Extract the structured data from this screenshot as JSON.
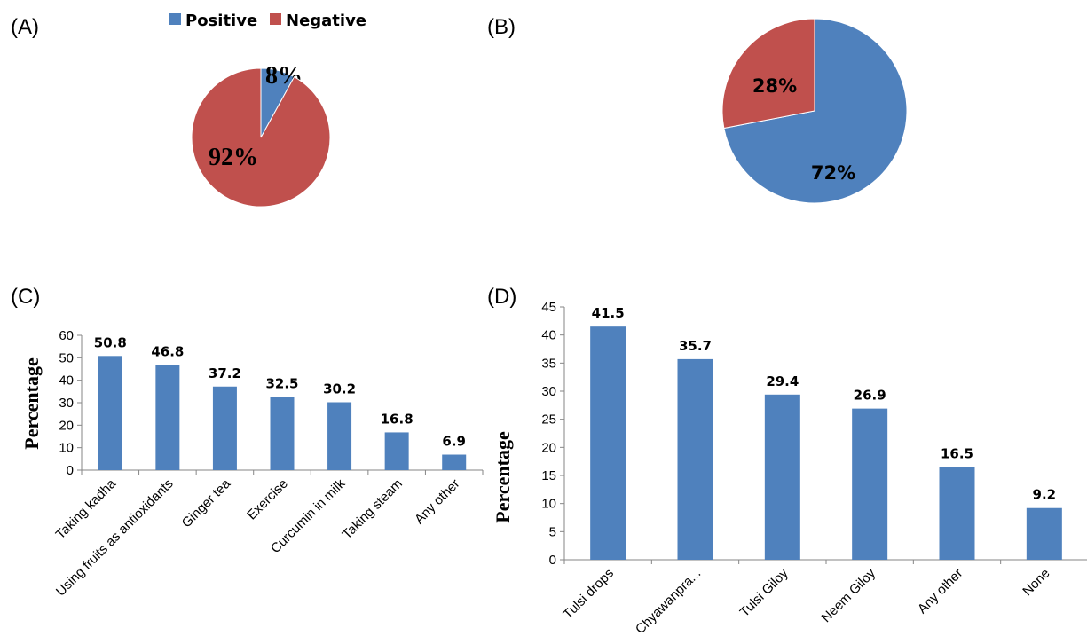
{
  "colors": {
    "positive": "#4F81BD",
    "negative": "#C0504D",
    "axis": "#868686"
  },
  "chart_data": [
    {
      "panel": "(A)",
      "type": "pie",
      "legend": [
        "Positive",
        "Negative"
      ],
      "legend_position": "top",
      "slices": [
        {
          "name": "Positive",
          "value": 8,
          "label": "8%"
        },
        {
          "name": "Negative",
          "value": 92,
          "label": "92%"
        }
      ]
    },
    {
      "panel": "(B)",
      "type": "pie",
      "slices": [
        {
          "name": "Positive",
          "value": 72,
          "label": "72%"
        },
        {
          "name": "Negative",
          "value": 28,
          "label": "28%"
        }
      ]
    },
    {
      "panel": "(C)",
      "type": "bar",
      "categories": [
        "Taking kadha",
        "Using fruits as antioxidants",
        "Ginger tea",
        "Exercise",
        "Curcumin in milk",
        "Taking steam",
        "Any other"
      ],
      "values": [
        50.8,
        46.8,
        37.2,
        32.5,
        30.2,
        16.8,
        6.9
      ],
      "ylabel": "Percentage",
      "ylim": [
        0,
        60
      ],
      "yticks": [
        0,
        10,
        20,
        30,
        40,
        50,
        60
      ],
      "grid": false
    },
    {
      "panel": "(D)",
      "type": "bar",
      "categories": [
        "Tulsi drops",
        "Chyawanpra...",
        "Tulsi Giloy",
        "Neem Giloy",
        "Any other",
        "None"
      ],
      "values": [
        41.5,
        35.7,
        29.4,
        26.9,
        16.5,
        9.2
      ],
      "ylabel": "Percentage",
      "ylim": [
        0,
        45
      ],
      "yticks": [
        0,
        5,
        10,
        15,
        20,
        25,
        30,
        35,
        40,
        45
      ],
      "grid": false
    }
  ]
}
